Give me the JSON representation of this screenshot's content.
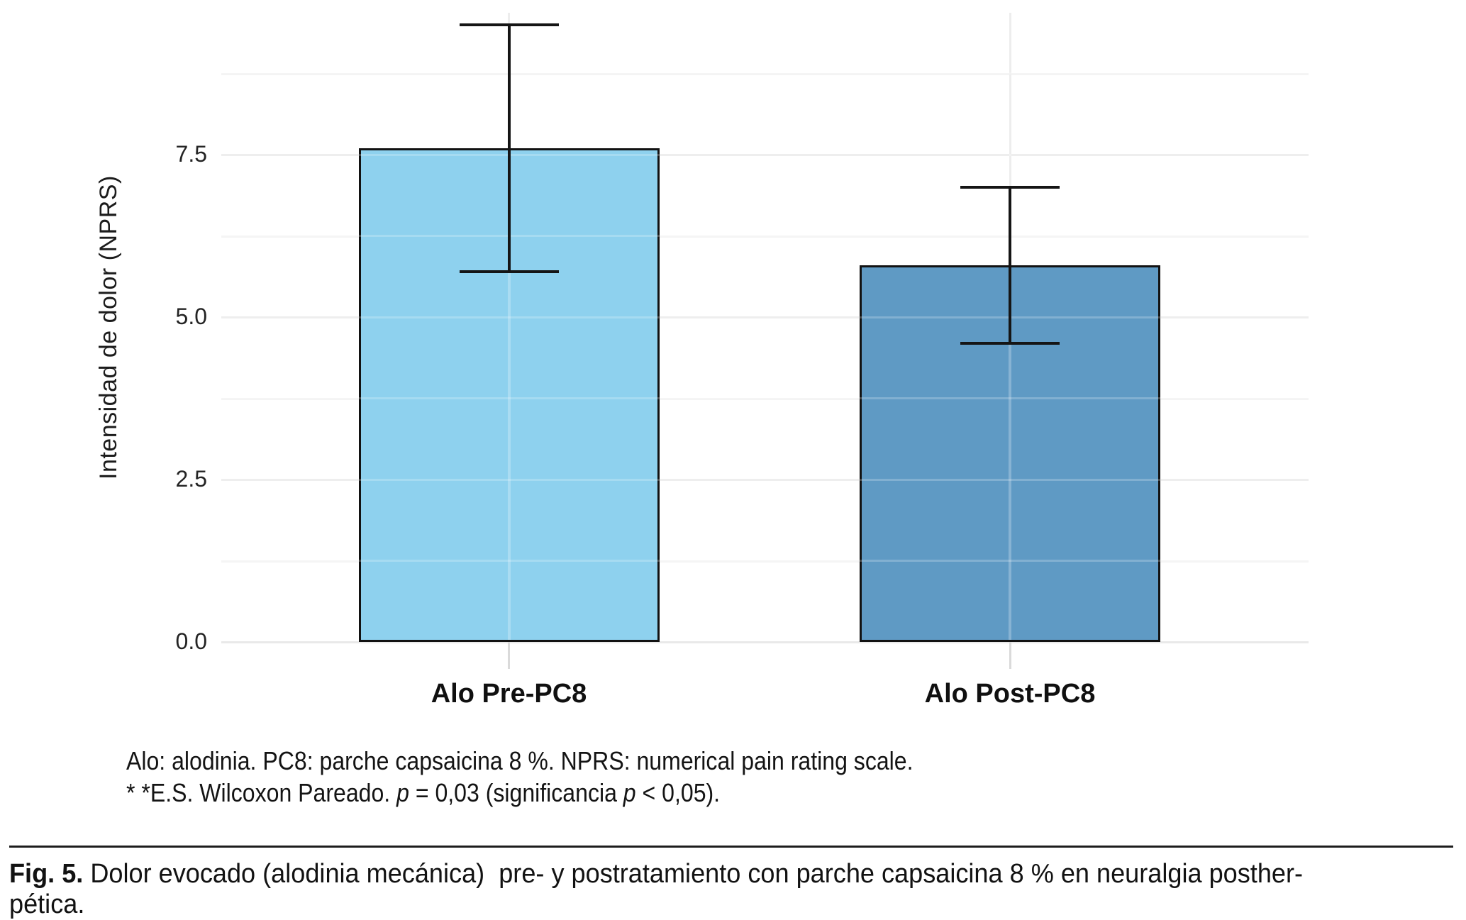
{
  "chart_data": {
    "type": "bar",
    "title": "",
    "xlabel": "",
    "ylabel": "Intensidad de dolor (NPRS)",
    "categories": [
      "Alo Pre-PC8",
      "Alo Post-PC8"
    ],
    "values": [
      7.6,
      5.8
    ],
    "error_low": [
      5.7,
      4.6
    ],
    "error_high": [
      9.5,
      7.0
    ],
    "bar_colors": [
      "#8ED1EE",
      "#5F9AC4"
    ],
    "bar_edge_color": "#121212",
    "error_bar_color": "#151515",
    "ylim": [
      0,
      9.7
    ],
    "yticks": [
      0,
      2.5,
      5,
      7.5
    ],
    "ytick_labels": [
      "0.0",
      "2.5",
      "5.0",
      "7.5"
    ],
    "minor_yticks": [
      1.25,
      3.75,
      6.25,
      8.75
    ],
    "grid": "horizontal major and minor, light gray, white panel",
    "legend": "none"
  },
  "notes": {
    "line1": "Alo: alodinia. PC8: parche capsaicina 8 %. NPRS: numerical pain rating scale.",
    "line2": "* *E.S. Wilcoxon Pareado. p = 0,03 (significancia p < 0,05).",
    "line2_segments": [
      {
        "t": "* *E.S. Wilcoxon Pareado. "
      },
      {
        "t": "p",
        "i": true
      },
      {
        "t": " = 0,03 (significancia "
      },
      {
        "t": "p",
        "i": true
      },
      {
        "t": " < 0,05)."
      }
    ]
  },
  "caption": {
    "full_text": "Fig. 5. Dolor evocado (alodinia mecánica)  pre- y postratamiento con parche capsaicina 8 % en neuralgia postherpética.",
    "line1_segments": [
      {
        "t": "Fig. 5.",
        "b": true
      },
      {
        "t": " Dolor evocado (alodinia mecánica)  pre- y postratamiento con parche capsaicina 8 % en neuralgia posther-"
      }
    ],
    "line2": "pética."
  }
}
